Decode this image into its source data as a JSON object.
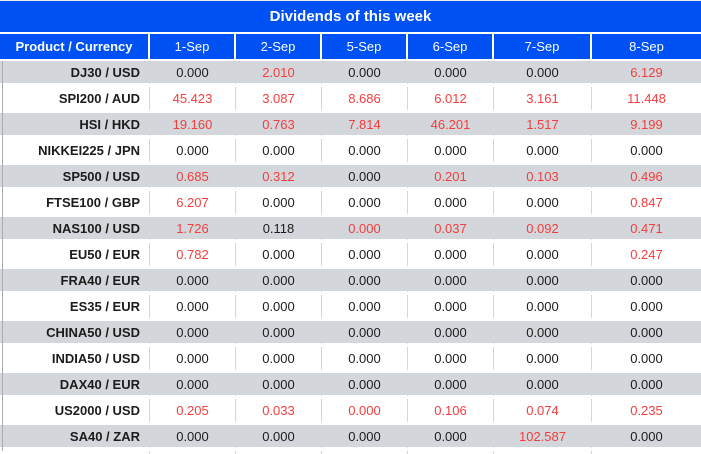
{
  "title": "Dividends of this week",
  "columns": [
    "Product / Currency",
    "1-Sep",
    "2-Sep",
    "5-Sep",
    "6-Sep",
    "7-Sep",
    "8-Sep"
  ],
  "chart_data": {
    "type": "table",
    "title": "Dividends of this week",
    "columns": [
      "Product / Currency",
      "1-Sep",
      "2-Sep",
      "5-Sep",
      "6-Sep",
      "7-Sep",
      "8-Sep"
    ],
    "rows": [
      {
        "product": "DJ30 / USD",
        "values": [
          "0.000",
          "2.010",
          "0.000",
          "0.000",
          "0.000",
          "6.129"
        ],
        "red": [
          0,
          1,
          0,
          0,
          0,
          1
        ]
      },
      {
        "product": "SPI200 / AUD",
        "values": [
          "45.423",
          "3.087",
          "8.686",
          "6.012",
          "3.161",
          "11.448"
        ],
        "red": [
          1,
          1,
          1,
          1,
          1,
          1
        ]
      },
      {
        "product": "HSI / HKD",
        "values": [
          "19.160",
          "0.763",
          "7.814",
          "46.201",
          "1.517",
          "9.199"
        ],
        "red": [
          1,
          1,
          1,
          1,
          1,
          1
        ]
      },
      {
        "product": "NIKKEI225 / JPN",
        "values": [
          "0.000",
          "0.000",
          "0.000",
          "0.000",
          "0.000",
          "0.000"
        ],
        "red": [
          0,
          0,
          0,
          0,
          0,
          0
        ]
      },
      {
        "product": "SP500 / USD",
        "values": [
          "0.685",
          "0.312",
          "0.000",
          "0.201",
          "0.103",
          "0.496"
        ],
        "red": [
          1,
          1,
          0,
          1,
          1,
          1
        ]
      },
      {
        "product": "FTSE100 / GBP",
        "values": [
          "6.207",
          "0.000",
          "0.000",
          "0.000",
          "0.000",
          "0.847"
        ],
        "red": [
          1,
          0,
          0,
          0,
          0,
          1
        ]
      },
      {
        "product": "NAS100 / USD",
        "values": [
          "1.726",
          "0.118",
          "0.000",
          "0.037",
          "0.092",
          "0.471"
        ],
        "red": [
          1,
          0,
          1,
          1,
          1,
          1
        ]
      },
      {
        "product": "EU50 / EUR",
        "values": [
          "0.782",
          "0.000",
          "0.000",
          "0.000",
          "0.000",
          "0.247"
        ],
        "red": [
          1,
          0,
          0,
          0,
          0,
          1
        ]
      },
      {
        "product": "FRA40 / EUR",
        "values": [
          "0.000",
          "0.000",
          "0.000",
          "0.000",
          "0.000",
          "0.000"
        ],
        "red": [
          0,
          0,
          0,
          0,
          0,
          0
        ]
      },
      {
        "product": "ES35 / EUR",
        "values": [
          "0.000",
          "0.000",
          "0.000",
          "0.000",
          "0.000",
          "0.000"
        ],
        "red": [
          0,
          0,
          0,
          0,
          0,
          0
        ]
      },
      {
        "product": "CHINA50 / USD",
        "values": [
          "0.000",
          "0.000",
          "0.000",
          "0.000",
          "0.000",
          "0.000"
        ],
        "red": [
          0,
          0,
          0,
          0,
          0,
          0
        ]
      },
      {
        "product": "INDIA50 / USD",
        "values": [
          "0.000",
          "0.000",
          "0.000",
          "0.000",
          "0.000",
          "0.000"
        ],
        "red": [
          0,
          0,
          0,
          0,
          0,
          0
        ]
      },
      {
        "product": "DAX40 / EUR",
        "values": [
          "0.000",
          "0.000",
          "0.000",
          "0.000",
          "0.000",
          "0.000"
        ],
        "red": [
          0,
          0,
          0,
          0,
          0,
          0
        ]
      },
      {
        "product": "US2000 / USD",
        "values": [
          "0.205",
          "0.033",
          "0.000",
          "0.106",
          "0.074",
          "0.235"
        ],
        "red": [
          1,
          1,
          1,
          1,
          1,
          1
        ]
      },
      {
        "product": "SA40 / ZAR",
        "values": [
          "0.000",
          "0.000",
          "0.000",
          "0.000",
          "102.587",
          "0.000"
        ],
        "red": [
          0,
          0,
          0,
          0,
          1,
          0
        ]
      }
    ]
  },
  "colors": {
    "header_blue": "#0051f4",
    "row_gray": "#d3d6da",
    "row_white": "#ffffff",
    "value_red": "#f53d3d",
    "text_dark": "#1c1c1c"
  }
}
